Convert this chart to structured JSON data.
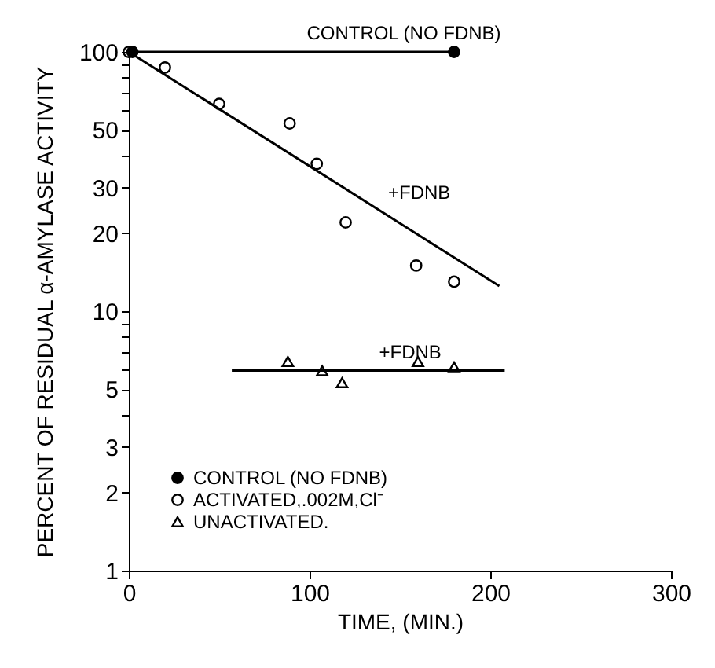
{
  "chart_data": {
    "type": "scatter",
    "xlabel": "TIME, (MIN.)",
    "ylabel": "PERCENT OF RESIDUAL α-AMYLASE ACTIVITY",
    "log": "y",
    "grid": false,
    "legend": "bottom left",
    "xlim": [
      0,
      300
    ],
    "xticks": [
      0,
      100,
      200,
      300
    ],
    "ylim": [
      1,
      100
    ],
    "yticks": [
      1,
      2,
      3,
      {
        "value": 4,
        "label": null
      },
      5,
      {
        "value": 6,
        "label": null
      },
      {
        "value": 7,
        "label": null
      },
      {
        "value": 8,
        "label": null
      },
      {
        "value": 9,
        "label": null
      },
      10,
      20,
      30,
      {
        "value": 40,
        "label": null
      },
      50,
      {
        "value": 60,
        "label": null
      },
      {
        "value": 70,
        "label": null
      },
      {
        "value": 80,
        "label": null
      },
      {
        "value": 90,
        "label": null
      },
      100
    ],
    "series": [
      {
        "name": "CONTROL (NO FDNB)",
        "type": "line",
        "marker": "circle",
        "color": "#000000",
        "x": [
          2,
          180
        ],
        "values": [
          100,
          100
        ]
      },
      {
        "name": "ACTIVATED,.002M,Cl⁻",
        "type": "scatter",
        "marker": "circle",
        "color": "#000000",
        "x": [
          0,
          20,
          50,
          89,
          104,
          120,
          159,
          180
        ],
        "values": [
          100,
          87,
          63,
          53,
          37,
          22,
          15,
          13
        ]
      },
      {
        "name": "UNACTIVATED.",
        "type": "scatter",
        "marker": "triangle",
        "color": "#000000",
        "x": [
          88,
          107,
          118,
          160,
          180
        ],
        "values": [
          6.4,
          5.9,
          5.3,
          6.4,
          6.1
        ]
      },
      {
        "type": "line",
        "marker": "none",
        "color": "#000000",
        "x": [
          0,
          205
        ],
        "values": [
          100,
          12.5
        ]
      },
      {
        "type": "line",
        "marker": "none",
        "color": "#000000",
        "x": [
          57,
          208
        ],
        "values": [
          5.9,
          5.9
        ]
      }
    ],
    "annotations": [
      {
        "text": "CONTROL (NO FDNB)",
        "x": 95,
        "y": 100
      },
      {
        "text": "+FDNB",
        "x": 140,
        "y": 24.2
      },
      {
        "text": "+FDNB",
        "x": 135,
        "y": 5.9
      }
    ]
  }
}
